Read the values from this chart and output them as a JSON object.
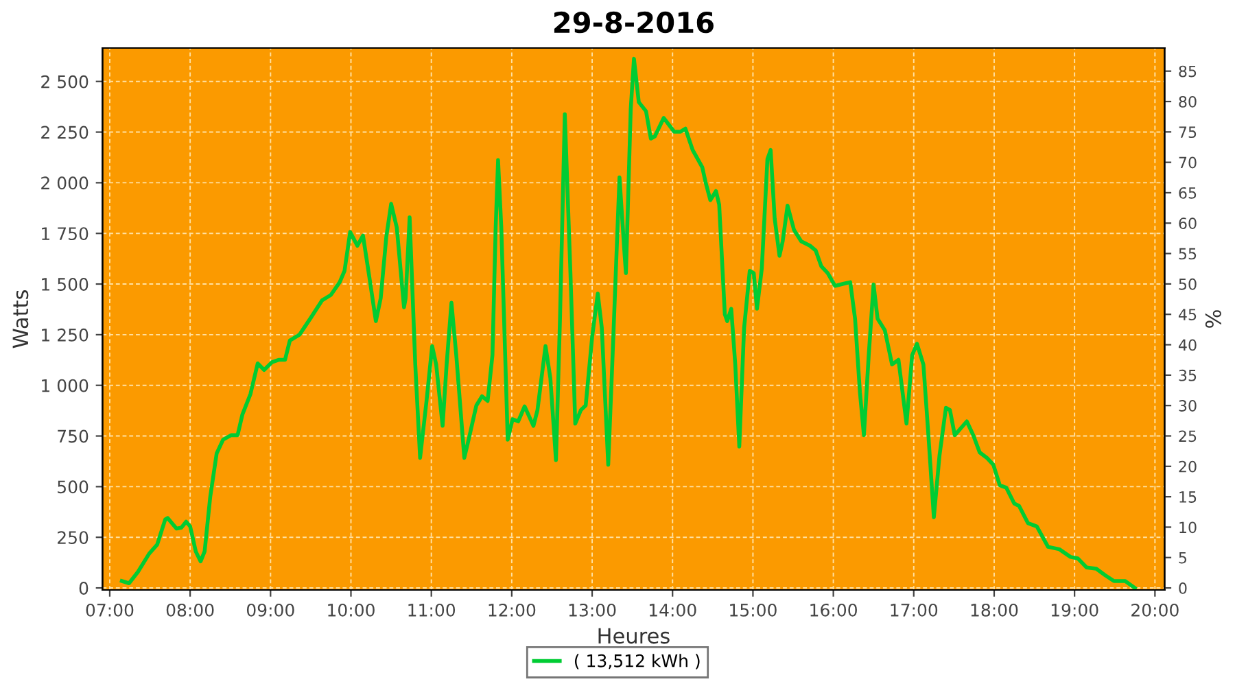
{
  "chart_data": {
    "type": "line",
    "title": "29-8-2016",
    "xlabel": "Heures",
    "ylabel": "Watts",
    "y2label": "%",
    "xlim": [
      6.91,
      20.12
    ],
    "ylim": [
      -10,
      2665
    ],
    "y2lim": [
      -0.33,
      88.8
    ],
    "xticks": [
      {
        "value": 7,
        "label": "07:00"
      },
      {
        "value": 8,
        "label": "08:00"
      },
      {
        "value": 9,
        "label": "09:00"
      },
      {
        "value": 10,
        "label": "10:00"
      },
      {
        "value": 11,
        "label": "11:00"
      },
      {
        "value": 12,
        "label": "12:00"
      },
      {
        "value": 13,
        "label": "13:00"
      },
      {
        "value": 14,
        "label": "14:00"
      },
      {
        "value": 15,
        "label": "15:00"
      },
      {
        "value": 16,
        "label": "16:00"
      },
      {
        "value": 17,
        "label": "17:00"
      },
      {
        "value": 18,
        "label": "18:00"
      },
      {
        "value": 19,
        "label": "19:00"
      },
      {
        "value": 20,
        "label": "20:00"
      }
    ],
    "yticks": [
      0,
      250,
      500,
      750,
      {
        "value": 1000,
        "label": "1 000"
      },
      {
        "value": 1250,
        "label": "1 250"
      },
      {
        "value": 1500,
        "label": "1 500"
      },
      {
        "value": 1750,
        "label": "1 750"
      },
      {
        "value": 2000,
        "label": "2 000"
      },
      {
        "value": 2250,
        "label": "2 250"
      },
      {
        "value": 2500,
        "label": "2 500"
      }
    ],
    "y2ticks": [
      0,
      5,
      10,
      15,
      20,
      25,
      30,
      35,
      40,
      45,
      50,
      55,
      60,
      65,
      70,
      75,
      80,
      85
    ],
    "grid": true,
    "legend": "bottom",
    "marker": "none",
    "line_style": "solid",
    "series": [
      {
        "name": "( 13,512 kWh )",
        "color": "#00cc33",
        "x": [
          7.15,
          7.24,
          7.35,
          7.49,
          7.59,
          7.69,
          7.72,
          7.83,
          7.89,
          7.95,
          8.0,
          8.07,
          8.13,
          8.18,
          8.25,
          8.33,
          8.41,
          8.51,
          8.59,
          8.65,
          8.75,
          8.84,
          8.92,
          9.02,
          9.1,
          9.18,
          9.24,
          9.36,
          9.5,
          9.64,
          9.75,
          9.86,
          9.92,
          9.99,
          10.08,
          10.15,
          10.23,
          10.31,
          10.37,
          10.44,
          10.5,
          10.57,
          10.66,
          10.68,
          10.73,
          10.8,
          10.86,
          10.94,
          11.01,
          11.06,
          11.14,
          11.19,
          11.25,
          11.31,
          11.41,
          11.47,
          11.56,
          11.63,
          11.7,
          11.76,
          11.8,
          11.83,
          11.87,
          11.95,
          12.01,
          12.08,
          12.16,
          12.27,
          12.32,
          12.42,
          12.48,
          12.55,
          12.6,
          12.66,
          12.73,
          12.79,
          12.86,
          12.92,
          13.0,
          13.07,
          13.12,
          13.2,
          13.25,
          13.34,
          13.4,
          13.42,
          13.48,
          13.52,
          13.58,
          13.67,
          13.73,
          13.78,
          13.89,
          14.02,
          14.1,
          14.16,
          14.25,
          14.37,
          14.41,
          14.47,
          14.54,
          14.58,
          14.65,
          14.68,
          14.73,
          14.78,
          14.83,
          14.89,
          14.96,
          15.01,
          15.05,
          15.11,
          15.18,
          15.22,
          15.27,
          15.33,
          15.37,
          15.43,
          15.51,
          15.6,
          15.71,
          15.78,
          15.85,
          15.93,
          16.02,
          16.13,
          16.21,
          16.27,
          16.33,
          16.38,
          16.44,
          16.5,
          16.55,
          16.64,
          16.73,
          16.81,
          16.86,
          16.91,
          16.98,
          17.04,
          17.12,
          17.18,
          17.25,
          17.32,
          17.4,
          17.45,
          17.51,
          17.66,
          17.74,
          17.82,
          17.91,
          17.99,
          18.07,
          18.15,
          18.25,
          18.31,
          18.42,
          18.53,
          18.67,
          18.81,
          18.95,
          19.04,
          19.15,
          19.27,
          19.38,
          19.49,
          19.63,
          19.75
        ],
        "values": [
          34,
          23,
          79,
          169,
          214,
          338,
          345,
          293,
          297,
          327,
          304,
          180,
          131,
          180,
          450,
          664,
          732,
          754,
          754,
          856,
          957,
          1108,
          1076,
          1115,
          1126,
          1126,
          1221,
          1250,
          1333,
          1419,
          1446,
          1509,
          1565,
          1757,
          1689,
          1739,
          1531,
          1317,
          1430,
          1734,
          1896,
          1779,
          1385,
          1430,
          1829,
          1103,
          642,
          923,
          1194,
          1103,
          800,
          1103,
          1408,
          1149,
          642,
          743,
          901,
          946,
          923,
          1149,
          1779,
          2112,
          1779,
          732,
          833,
          822,
          896,
          800,
          878,
          1194,
          1036,
          631,
          1329,
          2338,
          1554,
          811,
          878,
          901,
          1239,
          1453,
          1284,
          608,
          1103,
          2027,
          1666,
          1554,
          2365,
          2612,
          2398,
          2353,
          2218,
          2229,
          2320,
          2252,
          2252,
          2267,
          2162,
          2076,
          2004,
          1914,
          1959,
          1892,
          1351,
          1317,
          1378,
          1103,
          698,
          1284,
          1565,
          1554,
          1378,
          1576,
          2117,
          2162,
          1824,
          1639,
          1711,
          1887,
          1768,
          1711,
          1689,
          1666,
          1588,
          1554,
          1491,
          1502,
          1509,
          1329,
          968,
          754,
          1149,
          1498,
          1329,
          1272,
          1103,
          1126,
          968,
          811,
          1149,
          1205,
          1103,
          766,
          349,
          653,
          889,
          878,
          754,
          822,
          754,
          669,
          642,
          608,
          507,
          495,
          417,
          405,
          320,
          304,
          203,
          191,
          153,
          146,
          101,
          95,
          63,
          34,
          34,
          0
        ]
      }
    ]
  }
}
